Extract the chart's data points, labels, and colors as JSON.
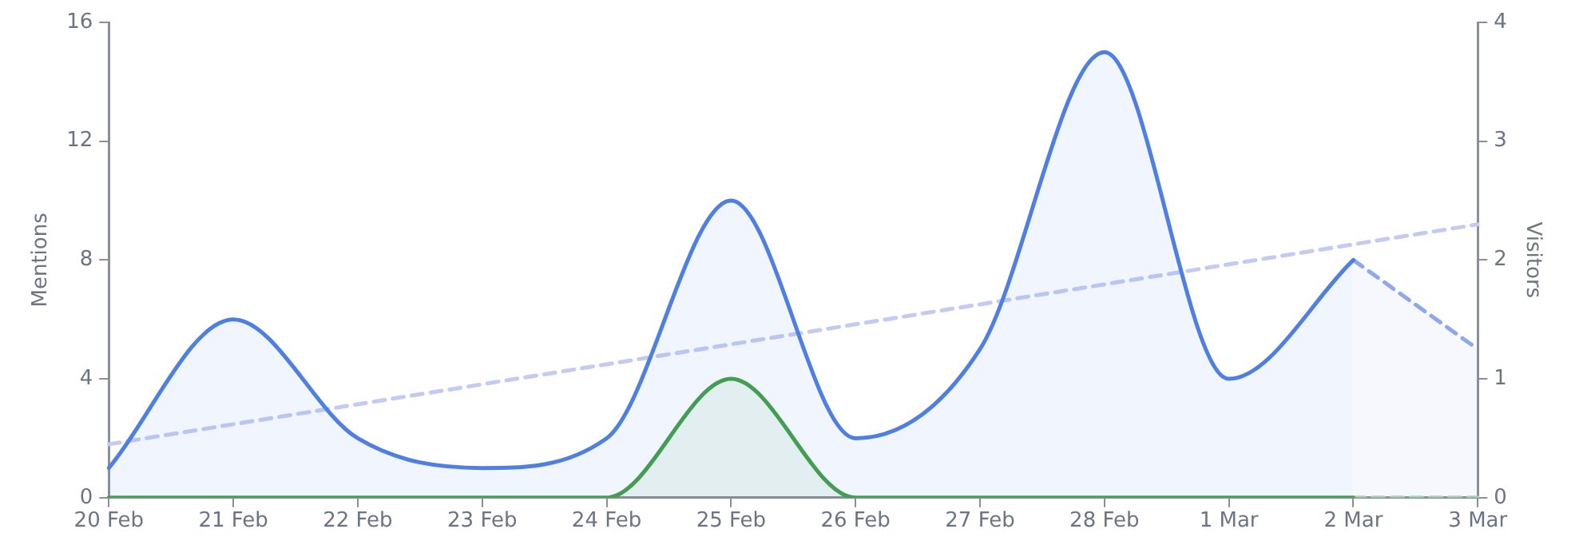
{
  "chart_data": {
    "type": "area",
    "xlabel": null,
    "ylabel": "Mentions",
    "y2label": "Visitors",
    "categories": [
      "20 Feb",
      "21 Feb",
      "22 Feb",
      "23 Feb",
      "24 Feb",
      "25 Feb",
      "26 Feb",
      "27 Feb",
      "28 Feb",
      "1 Mar",
      "2 Mar",
      "3 Mar"
    ],
    "ylim": [
      0,
      16
    ],
    "yticks": [
      0,
      4,
      8,
      12,
      16
    ],
    "y2lim": [
      0,
      4
    ],
    "y2ticks": [
      0,
      1,
      2,
      3,
      4
    ],
    "grid": false,
    "legend": false,
    "marker": "none",
    "series": [
      {
        "color": "#4f7fe3",
        "line_style": "solid",
        "values": [
          1,
          6,
          2,
          1,
          2,
          10,
          2,
          5,
          15,
          4,
          8,
          null
        ]
      },
      {
        "color": "#8ea8ee",
        "line_style": "dashed",
        "values": [
          null,
          null,
          null,
          null,
          null,
          null,
          null,
          null,
          null,
          null,
          8,
          5
        ]
      },
      {
        "color": "#43a047",
        "axis": "y2",
        "line_style": "solid",
        "values": [
          0,
          0,
          0,
          0,
          0,
          1,
          0,
          0,
          0,
          0,
          0,
          null
        ]
      },
      {
        "color": "#a5d6a7",
        "axis": "y2",
        "line_style": "dashed",
        "type": "line",
        "values": [
          null,
          null,
          null,
          null,
          null,
          null,
          null,
          null,
          null,
          null,
          0,
          0
        ]
      },
      {
        "color": "#c3cbf4",
        "type": "line",
        "line_style": "dashed",
        "x": [
          "20 Feb",
          "3 Mar"
        ],
        "values": [
          1.8,
          9.2
        ]
      }
    ]
  }
}
